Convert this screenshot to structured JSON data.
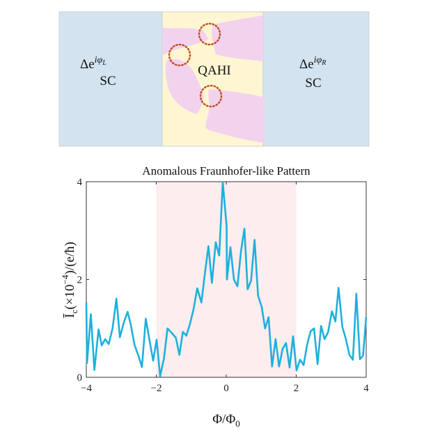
{
  "diagram": {
    "left": {
      "delta": "Δe",
      "sup_base": "iφ",
      "sup_sub": "L",
      "label": "SC"
    },
    "middle": {
      "label": "QAHI"
    },
    "right": {
      "delta": "Δe",
      "sup_base": "iφ",
      "sup_sub": "R",
      "label": "SC"
    },
    "colors": {
      "sc": "#d3e3f0",
      "qahi": "#fef6d2",
      "domain": "#f3d2ee",
      "circle": "#c0501e"
    }
  },
  "chart_data": {
    "type": "line",
    "title": "Anomalous Fraunhofer-like Pattern",
    "xlabel": {
      "main": "Φ/Φ",
      "sub": "0"
    },
    "ylabel": {
      "main": "Ī",
      "sub": "c",
      "mid": "(×10",
      "exp": "−4",
      "tail": ")/(e/ħ)"
    },
    "xlim": [
      -4,
      4
    ],
    "ylim": [
      0,
      4
    ],
    "xticks": [
      "-4",
      "-2",
      "0",
      "2",
      "4"
    ],
    "yticks": [
      "0",
      "2",
      "4"
    ],
    "shaded_region": [
      -2,
      2
    ],
    "grid": false,
    "colors": {
      "line": "#1fb0dc",
      "shade": "#fcedef"
    },
    "x": [
      -4,
      -3.98,
      -3.87,
      -3.77,
      -3.65,
      -3.56,
      -3.46,
      -3.36,
      -3.25,
      -3.14,
      -3.04,
      -2.92,
      -2.82,
      -2.73,
      -2.62,
      -2.51,
      -2.41,
      -2.3,
      -2.19,
      -2.09,
      -1.99,
      -1.89,
      -1.78,
      -1.68,
      -1.56,
      -1.44,
      -1.34,
      -1.24,
      -1.14,
      -1.04,
      -0.93,
      -0.83,
      -0.71,
      -0.61,
      -0.51,
      -0.41,
      -0.3,
      -0.2,
      -0.1,
      0.01,
      0.02,
      0.12,
      0.22,
      0.32,
      0.42,
      0.52,
      0.61,
      0.71,
      0.81,
      0.91,
      1.01,
      1.11,
      1.21,
      1.31,
      1.41,
      1.51,
      1.61,
      1.71,
      1.81,
      1.91,
      2.01,
      2.11,
      2.21,
      2.31,
      2.41,
      2.51,
      2.61,
      2.71,
      2.81,
      2.91,
      3.02,
      3.12,
      3.21,
      3.32,
      3.42,
      3.52,
      3.62,
      3.72,
      3.82,
      3.91,
      4.0
    ],
    "y": [
      1.53,
      0.29,
      1.29,
      0.15,
      0.98,
      0.65,
      0.78,
      0.68,
      1.0,
      1.61,
      0.82,
      1.14,
      1.34,
      1.08,
      0.66,
      0.44,
      0.21,
      1.2,
      0.74,
      0.34,
      0.77,
      0.02,
      0.39,
      1.0,
      0.91,
      0.81,
      0.46,
      0.93,
      0.85,
      1.08,
      1.41,
      1.82,
      1.53,
      2.12,
      2.68,
      1.93,
      2.76,
      2.49,
      3.99,
      3.09,
      2.0,
      2.66,
      2.0,
      1.86,
      2.57,
      3.04,
      1.8,
      1.98,
      2.81,
      1.67,
      1.45,
      1.0,
      1.23,
      0.22,
      0.78,
      0.22,
      0.58,
      0.7,
      0.2,
      0.84,
      0.14,
      0.36,
      0.25,
      0.66,
      0.94,
      1.0,
      0.27,
      1.05,
      0.78,
      0.92,
      1.35,
      1.14,
      1.83,
      1.03,
      0.78,
      0.46,
      0.36,
      1.71,
      0.37,
      0.44,
      1.23
    ]
  }
}
